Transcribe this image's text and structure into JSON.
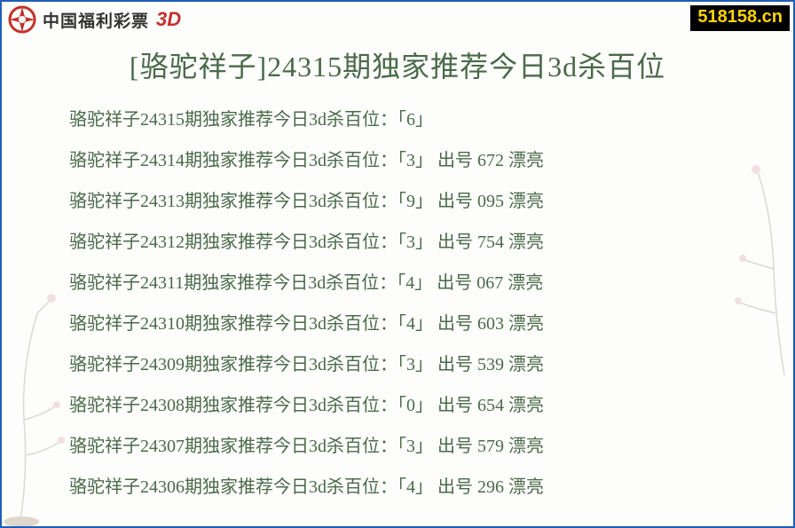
{
  "header": {
    "brand_text": "中国福利彩票",
    "brand_3d": "3D",
    "url_tag": "518158.cn"
  },
  "title": "[骆驼祥子]24315期独家推荐今日3d杀百位",
  "row_prefix": "骆驼祥子",
  "row_mid": "期独家推荐今日3d杀百位：「",
  "draw_label": "出号",
  "nice_label": "漂亮",
  "colors": {
    "border": "#1e5fb8",
    "text": "#4a6a4a",
    "logo_red": "#c4302b",
    "tag_bg": "#000000",
    "tag_fg": "#ffd400",
    "page_bg": "#fdfdfb"
  },
  "font": {
    "title_size": 32,
    "row_size": 20,
    "family": "SimSun"
  },
  "rows": [
    {
      "period": "24315",
      "kill": "6",
      "draw": null,
      "nice": false
    },
    {
      "period": "24314",
      "kill": "3",
      "draw": "672",
      "nice": true
    },
    {
      "period": "24313",
      "kill": "9",
      "draw": "095",
      "nice": true
    },
    {
      "period": "24312",
      "kill": "3",
      "draw": "754",
      "nice": true
    },
    {
      "period": "24311",
      "kill": "4",
      "draw": "067",
      "nice": true
    },
    {
      "period": "24310",
      "kill": "4",
      "draw": "603",
      "nice": true
    },
    {
      "period": "24309",
      "kill": "3",
      "draw": "539",
      "nice": true
    },
    {
      "period": "24308",
      "kill": "0",
      "draw": "654",
      "nice": true
    },
    {
      "period": "24307",
      "kill": "3",
      "draw": "579",
      "nice": true
    },
    {
      "period": "24306",
      "kill": "4",
      "draw": "296",
      "nice": true
    }
  ]
}
